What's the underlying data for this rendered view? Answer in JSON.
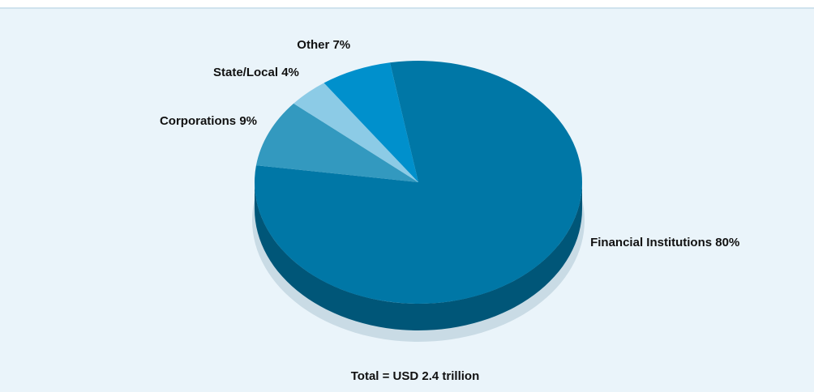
{
  "chart_data": {
    "type": "pie",
    "categories": [
      "Financial Institutions",
      "Corporations",
      "State/Local",
      "Other"
    ],
    "values": [
      80,
      9,
      4,
      7
    ],
    "value_labels": [
      "80%",
      "9%",
      "4%",
      "7%"
    ],
    "colors": [
      "#0077a6",
      "#3399bf",
      "#8ccbe6",
      "#0090cc"
    ],
    "annotation": "Total = USD 2.4 trillion"
  }
}
